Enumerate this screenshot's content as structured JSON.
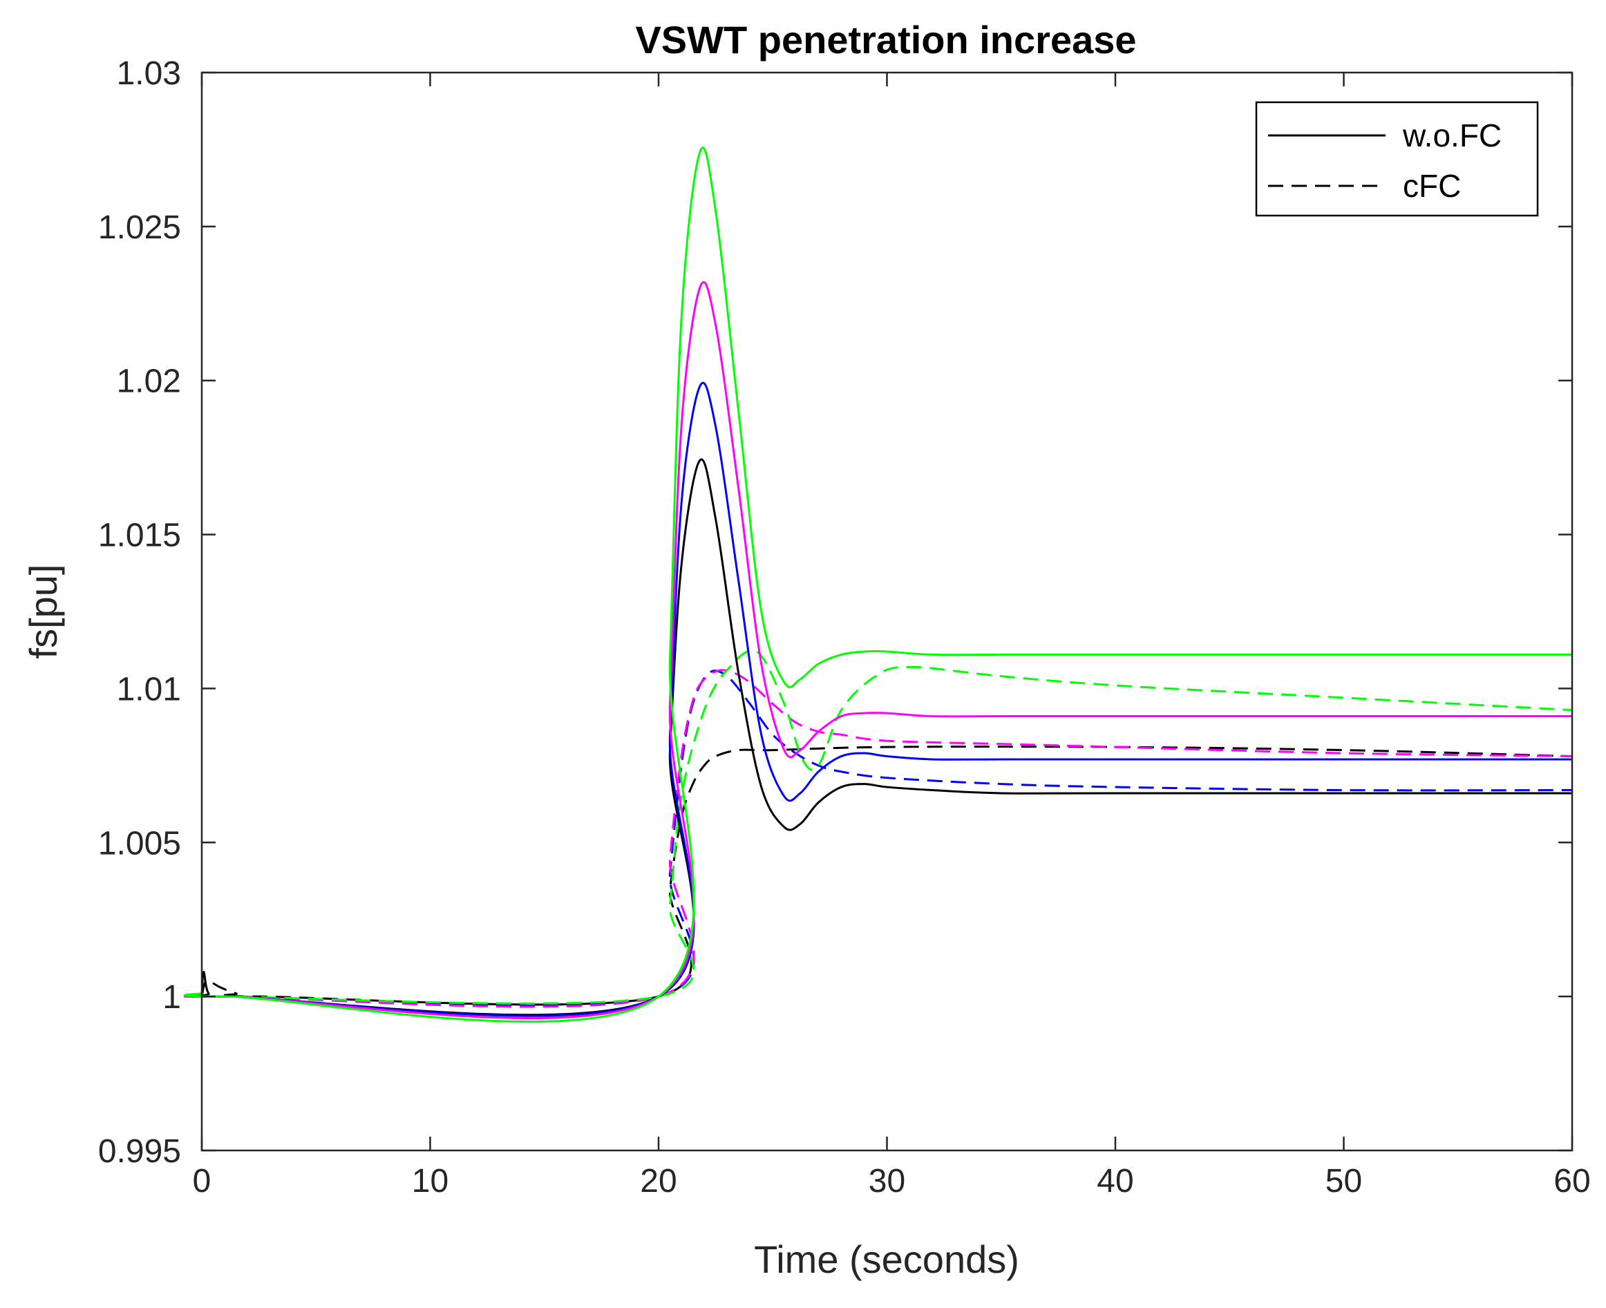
{
  "chart_data": {
    "type": "line",
    "title": "VSWT penetration increase",
    "xlabel": "Time (seconds)",
    "ylabel": "fs[pu]",
    "xlim": [
      0,
      60
    ],
    "ylim": [
      0.995,
      1.03
    ],
    "xticks": [
      0,
      10,
      20,
      30,
      40,
      50,
      60
    ],
    "xtick_labels": [
      "0",
      "10",
      "20",
      "30",
      "40",
      "50",
      "60"
    ],
    "yticks": [
      0.995,
      1,
      1.005,
      1.01,
      1.015,
      1.02,
      1.025,
      1.03
    ],
    "ytick_labels": [
      "0.995",
      "1",
      "1.005",
      "1.01",
      "1.015",
      "1.02",
      "1.025",
      "1.03"
    ],
    "grid": false,
    "legend": {
      "position": "top-right",
      "entries": [
        {
          "label": "w.o.FC",
          "color": "#000000",
          "style": "solid"
        },
        {
          "label": "cFC",
          "color": "#000000",
          "style": "dashed"
        }
      ]
    },
    "series": [
      {
        "name": "black w.o.FC",
        "color": "#000000",
        "style": "solid",
        "x": [
          0,
          0.08,
          0.3,
          1,
          20,
          20.5,
          21,
          21.8,
          22.5,
          23.5,
          24.5,
          25.5,
          26.2,
          27,
          28,
          29,
          30,
          32,
          35,
          40,
          60
        ],
        "y": [
          1.0,
          1.0008,
          1.0001,
          1.0,
          1.0,
          1.008,
          1.014,
          1.0174,
          1.0155,
          1.0105,
          1.0068,
          1.0055,
          1.0056,
          1.0063,
          1.0068,
          1.0069,
          1.0068,
          1.0067,
          1.0066,
          1.0066,
          1.0066
        ]
      },
      {
        "name": "blue w.o.FC",
        "color": "#0000ff",
        "style": "solid",
        "x": [
          0,
          1,
          20,
          20.5,
          21,
          21.8,
          22.5,
          23.5,
          24.5,
          25.5,
          26.2,
          27,
          28,
          29,
          30,
          32,
          35,
          40,
          60
        ],
        "y": [
          1.0,
          1.0,
          1.0,
          1.0085,
          1.016,
          1.0198,
          1.0185,
          1.0135,
          1.0085,
          1.0065,
          1.0066,
          1.0073,
          1.0078,
          1.0079,
          1.0078,
          1.0077,
          1.0077,
          1.0077,
          1.0077
        ]
      },
      {
        "name": "magenta w.o.FC",
        "color": "#ff00ff",
        "style": "solid",
        "x": [
          0,
          1,
          20,
          20.5,
          21,
          21.8,
          22.5,
          23.5,
          24.5,
          25.5,
          26.2,
          27,
          28,
          29,
          30,
          32,
          35,
          40,
          60
        ],
        "y": [
          1.0,
          1.0,
          1.0,
          1.0095,
          1.0185,
          1.023,
          1.0218,
          1.0165,
          1.0108,
          1.008,
          1.008,
          1.0086,
          1.0091,
          1.0092,
          1.0092,
          1.0091,
          1.0091,
          1.0091,
          1.0091
        ]
      },
      {
        "name": "green w.o.FC",
        "color": "#00ff00",
        "style": "solid",
        "x": [
          0,
          1,
          20,
          20.5,
          21,
          21.8,
          22.5,
          23.5,
          24.5,
          25.5,
          26.2,
          27,
          28,
          29,
          30,
          32,
          35,
          40,
          60
        ],
        "y": [
          1.0001,
          1.0,
          1.0,
          1.011,
          1.022,
          1.0274,
          1.0255,
          1.019,
          1.0125,
          1.0102,
          1.0103,
          1.0108,
          1.0111,
          1.0112,
          1.0112,
          1.0111,
          1.0111,
          1.0111,
          1.0111
        ]
      },
      {
        "name": "black cFC",
        "color": "#000000",
        "style": "dashed",
        "x": [
          0,
          0.2,
          0.8,
          1.5,
          2.5,
          20,
          20.5,
          21,
          21.5,
          22,
          22.5,
          23.5,
          25,
          30,
          40,
          50,
          60
        ],
        "y": [
          1.0,
          1.0005,
          1.0003,
          1.0001,
          1.0,
          1.0,
          1.0035,
          1.0058,
          1.0069,
          1.0075,
          1.0078,
          1.008,
          1.008,
          1.0081,
          1.0081,
          1.008,
          1.0078
        ]
      },
      {
        "name": "blue cFC",
        "color": "#0000ff",
        "style": "dashed",
        "x": [
          0,
          1,
          20,
          20.5,
          21,
          21.5,
          22.2,
          23,
          24,
          25,
          26,
          27,
          28,
          30,
          35,
          40,
          50,
          60
        ],
        "y": [
          1.0,
          1.0,
          1.0,
          1.004,
          1.0075,
          1.0095,
          1.0105,
          1.0104,
          1.0095,
          1.0085,
          1.0079,
          1.0075,
          1.0073,
          1.0071,
          1.0069,
          1.0068,
          1.0067,
          1.0067
        ]
      },
      {
        "name": "magenta cFC",
        "color": "#ff00ff",
        "style": "dashed",
        "x": [
          0,
          1,
          20,
          20.5,
          21,
          21.5,
          22,
          22.8,
          23.8,
          25,
          26,
          27,
          28,
          30,
          35,
          40,
          50,
          60
        ],
        "y": [
          1.0,
          1.0,
          1.0,
          1.0045,
          1.0078,
          1.0096,
          1.0103,
          1.0106,
          1.0103,
          1.0095,
          1.0089,
          1.0086,
          1.0085,
          1.0083,
          1.0082,
          1.0081,
          1.0079,
          1.0078
        ]
      },
      {
        "name": "green cFC",
        "color": "#00ff00",
        "style": "dashed",
        "x": [
          0,
          1,
          20,
          20.5,
          21,
          22,
          23,
          24.3,
          25.5,
          26.3,
          27,
          28,
          29.5,
          31,
          35,
          40,
          50,
          60
        ],
        "y": [
          1.0001,
          1.0,
          1.0,
          1.003,
          1.0065,
          1.0093,
          1.0106,
          1.0112,
          1.0095,
          1.0077,
          1.0075,
          1.0093,
          1.0104,
          1.0107,
          1.0104,
          1.0101,
          1.0097,
          1.0093
        ]
      }
    ]
  }
}
